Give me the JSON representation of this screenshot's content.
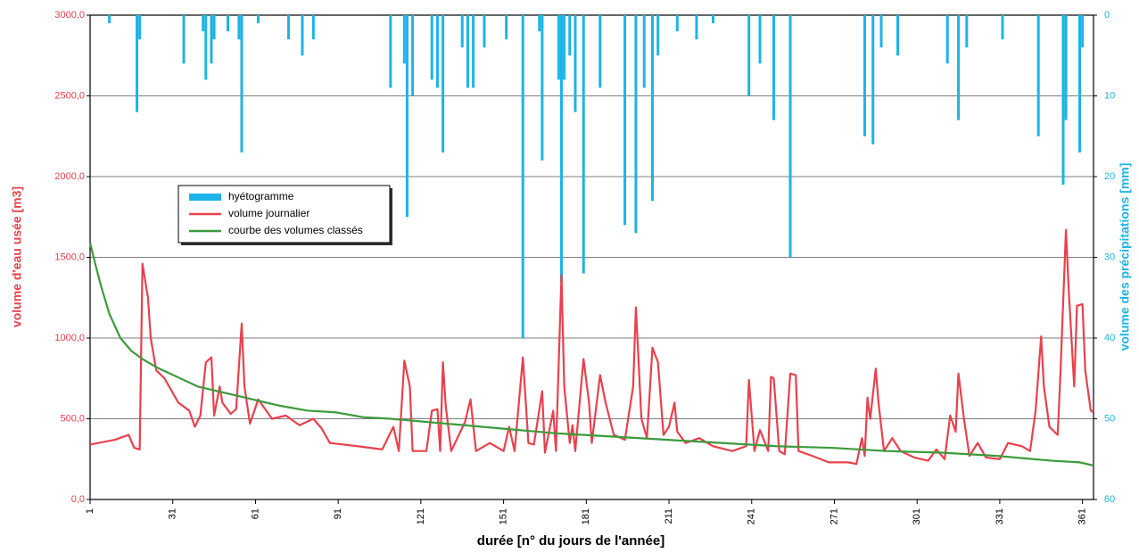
{
  "chart_data": {
    "type": "combo",
    "xlabel": "durée [n° du jours de l'année]",
    "ylabel": "volume d'eau usée [m3]",
    "y2label": "volume des précipitations [mm]",
    "xlim": [
      1,
      365
    ],
    "xticks": [
      1,
      31,
      61,
      91,
      121,
      151,
      181,
      211,
      241,
      271,
      301,
      331,
      361
    ],
    "ylim": [
      0,
      3000
    ],
    "yticks": [
      {
        "value": 0,
        "label": "0,0"
      },
      {
        "value": 500,
        "label": "500,0"
      },
      {
        "value": 1000,
        "label": "1000,0"
      },
      {
        "value": 1500,
        "label": "1500,0"
      },
      {
        "value": 2000,
        "label": "2000,0"
      },
      {
        "value": 2500,
        "label": "2500,0"
      },
      {
        "value": 3000,
        "label": "3000,0"
      }
    ],
    "y2lim": [
      0,
      60
    ],
    "y2ticks": [
      0,
      10,
      20,
      30,
      40,
      50,
      60
    ],
    "y2_inverted": true,
    "grid": true,
    "legend": "upper left",
    "series": [
      {
        "name": "hyétogramme",
        "type": "bar",
        "axis": "y2",
        "color": "#1cb4e8",
        "x": [
          8,
          18,
          19,
          35,
          42,
          43,
          45,
          46,
          51,
          55,
          56,
          62,
          73,
          78,
          82,
          110,
          115,
          116,
          118,
          125,
          127,
          129,
          136,
          138,
          140,
          144,
          152,
          158,
          164,
          165,
          171,
          172,
          173,
          175,
          177,
          180,
          186,
          195,
          199,
          202,
          205,
          207,
          214,
          221,
          227,
          240,
          244,
          249,
          255,
          282,
          285,
          288,
          294,
          312,
          316,
          319,
          332,
          345,
          354,
          355,
          360,
          361
        ],
        "values": [
          1,
          12,
          3,
          6,
          2,
          8,
          6,
          3,
          2,
          3,
          17,
          1,
          3,
          5,
          3,
          9,
          6,
          25,
          10,
          8,
          9,
          17,
          4,
          9,
          9,
          4,
          3,
          40,
          2,
          18,
          8,
          33,
          8,
          5,
          12,
          32,
          9,
          26,
          27,
          9,
          23,
          5,
          2,
          3,
          1,
          10,
          6,
          13,
          30,
          15,
          16,
          4,
          5,
          6,
          13,
          4,
          3,
          15,
          21,
          13,
          17,
          4
        ]
      },
      {
        "name": "volume journalier",
        "type": "line",
        "color": "#e8414d",
        "x": [
          1,
          10,
          15,
          17,
          19,
          20,
          22,
          23,
          25,
          28,
          33,
          37,
          39,
          41,
          43,
          45,
          46,
          48,
          49,
          52,
          54,
          56,
          57,
          59,
          62,
          67,
          72,
          77,
          82,
          85,
          88,
          98,
          107,
          111,
          113,
          115,
          117,
          118,
          123,
          125,
          127,
          128,
          129,
          130,
          132,
          137,
          139,
          141,
          146,
          151,
          153,
          155,
          158,
          160,
          162,
          165,
          166,
          169,
          170,
          172,
          173,
          175,
          176,
          177,
          180,
          182,
          183,
          186,
          188,
          191,
          195,
          198,
          199,
          201,
          203,
          205,
          207,
          209,
          211,
          213,
          214,
          217,
          222,
          227,
          234,
          239,
          240,
          242,
          244,
          247,
          248,
          249,
          251,
          253,
          255,
          257,
          258,
          263,
          269,
          276,
          279,
          281,
          282,
          283,
          284,
          286,
          287,
          289,
          292,
          295,
          300,
          305,
          308,
          311,
          313,
          315,
          316,
          318,
          320,
          323,
          326,
          331,
          334,
          339,
          342,
          344,
          346,
          347,
          349,
          352,
          353,
          355,
          356,
          358,
          359,
          361,
          362,
          364,
          365
        ],
        "values": [
          340,
          370,
          400,
          320,
          310,
          1460,
          1250,
          1000,
          800,
          750,
          600,
          550,
          450,
          520,
          850,
          880,
          520,
          700,
          600,
          530,
          560,
          1090,
          700,
          470,
          620,
          500,
          520,
          460,
          500,
          440,
          350,
          330,
          310,
          450,
          300,
          860,
          700,
          300,
          300,
          550,
          560,
          300,
          850,
          580,
          300,
          480,
          620,
          300,
          350,
          300,
          450,
          300,
          880,
          350,
          340,
          670,
          290,
          550,
          300,
          1390,
          700,
          350,
          460,
          300,
          870,
          600,
          350,
          770,
          600,
          400,
          370,
          700,
          1190,
          500,
          380,
          940,
          850,
          400,
          450,
          600,
          420,
          350,
          380,
          330,
          300,
          330,
          740,
          300,
          430,
          300,
          760,
          750,
          300,
          280,
          780,
          770,
          300,
          270,
          230,
          230,
          220,
          380,
          270,
          630,
          500,
          810,
          600,
          300,
          380,
          300,
          260,
          240,
          310,
          250,
          520,
          420,
          780,
          500,
          270,
          350,
          260,
          250,
          350,
          330,
          300,
          550,
          1010,
          700,
          450,
          400,
          780,
          1670,
          1300,
          700,
          1200,
          1210,
          800,
          550,
          540
        ]
      },
      {
        "name": "courbe des volumes classés",
        "type": "line",
        "color": "#3c9a3c",
        "x": [
          1,
          3,
          5,
          8,
          12,
          16,
          20,
          25,
          30,
          35,
          40,
          50,
          60,
          70,
          80,
          90,
          100,
          110,
          130,
          150,
          170,
          190,
          210,
          230,
          250,
          270,
          290,
          310,
          330,
          350,
          360,
          365
        ],
        "values": [
          1590,
          1450,
          1320,
          1150,
          1000,
          920,
          870,
          820,
          780,
          740,
          700,
          660,
          620,
          580,
          550,
          540,
          510,
          500,
          470,
          440,
          410,
          390,
          370,
          350,
          330,
          320,
          300,
          290,
          270,
          240,
          230,
          210
        ]
      }
    ]
  }
}
